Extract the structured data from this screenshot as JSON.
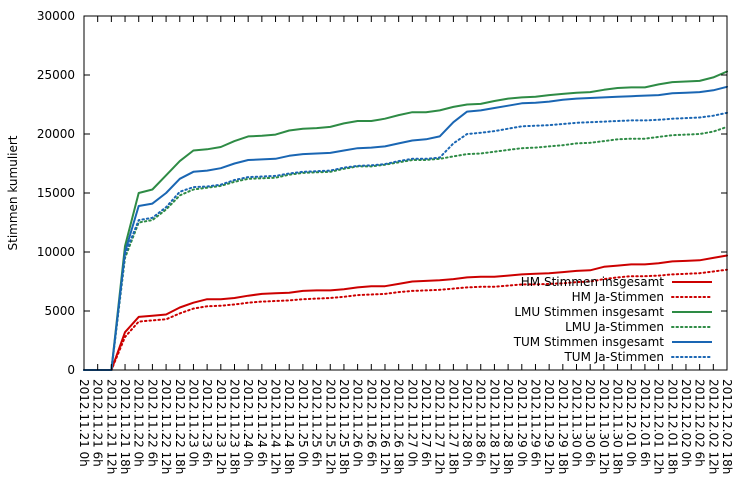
{
  "chart_data": {
    "type": "line",
    "title": "",
    "xlabel": "",
    "ylabel": "Stimmen kumuliert",
    "ylim": [
      0,
      30000
    ],
    "yticks": [
      0,
      5000,
      10000,
      15000,
      20000,
      25000,
      30000
    ],
    "grid": false,
    "legend_position": "bottom-right",
    "categories": [
      "2012.11.21 0h",
      "2012.11.21 6h",
      "2012.11.21 12h",
      "2012.11.21 18h",
      "2012.11.22 0h",
      "2012.11.22 6h",
      "2012.11.22 12h",
      "2012.11.22 18h",
      "2012.11.23 0h",
      "2012.11.23 6h",
      "2012.11.23 12h",
      "2012.11.23 18h",
      "2012.11.24 0h",
      "2012.11.24 6h",
      "2012.11.24 12h",
      "2012.11.24 18h",
      "2012.11.25 0h",
      "2012.11.25 6h",
      "2012.11.25 12h",
      "2012.11.25 18h",
      "2012.11.26 0h",
      "2012.11.26 6h",
      "2012.11.26 12h",
      "2012.11.26 18h",
      "2012.11.27 0h",
      "2012.11.27 6h",
      "2012.11.27 12h",
      "2012.11.27 18h",
      "2012.11.28 0h",
      "2012.11.28 6h",
      "2012.11.28 12h",
      "2012.11.28 18h",
      "2012.11.29 0h",
      "2012.11.29 6h",
      "2012.11.29 12h",
      "2012.11.29 18h",
      "2012.11.30 0h",
      "2012.11.30 6h",
      "2012.11.30 12h",
      "2012.11.30 18h",
      "2012.12.01 0h",
      "2012.12.01 6h",
      "2012.12.01 12h",
      "2012.12.01 18h",
      "2012.12.02 0h",
      "2012.12.02 6h",
      "2012.12.02 12h",
      "2012.12.02 18h"
    ],
    "series": [
      {
        "name": "HM Stimmen insgesamt",
        "color": "#cc0000",
        "style": "solid",
        "values": [
          0,
          0,
          0,
          3200,
          4500,
          4600,
          4700,
          5300,
          5700,
          6000,
          6000,
          6100,
          6300,
          6450,
          6500,
          6550,
          6700,
          6750,
          6750,
          6850,
          7000,
          7100,
          7100,
          7300,
          7500,
          7550,
          7600,
          7700,
          7850,
          7900,
          7900,
          8000,
          8100,
          8150,
          8200,
          8300,
          8400,
          8450,
          8750,
          8850,
          8950,
          8950,
          9050,
          9200,
          9250,
          9300,
          9500,
          9700
        ]
      },
      {
        "name": "HM Ja-Stimmen",
        "color": "#cc0000",
        "style": "dotted",
        "values": [
          0,
          0,
          0,
          2800,
          4100,
          4200,
          4300,
          4800,
          5200,
          5400,
          5450,
          5550,
          5700,
          5800,
          5850,
          5900,
          6000,
          6050,
          6100,
          6200,
          6350,
          6400,
          6450,
          6600,
          6700,
          6750,
          6800,
          6900,
          7000,
          7050,
          7050,
          7150,
          7250,
          7250,
          7300,
          7350,
          7450,
          7500,
          7700,
          7850,
          7950,
          7950,
          8000,
          8100,
          8150,
          8200,
          8350,
          8500
        ]
      },
      {
        "name": "LMU Stimmen insgesamt",
        "color": "#2e8b45",
        "style": "solid",
        "values": [
          0,
          0,
          0,
          10500,
          15000,
          15300,
          16500,
          17700,
          18600,
          18700,
          18900,
          19400,
          19800,
          19850,
          19950,
          20300,
          20450,
          20500,
          20600,
          20900,
          21100,
          21100,
          21300,
          21600,
          21850,
          21850,
          22000,
          22300,
          22500,
          22550,
          22800,
          23000,
          23100,
          23150,
          23300,
          23400,
          23500,
          23550,
          23750,
          23900,
          23950,
          23950,
          24200,
          24400,
          24450,
          24500,
          24800,
          25300
        ]
      },
      {
        "name": "LMU Ja-Stimmen",
        "color": "#2e8b45",
        "style": "dotted",
        "values": [
          0,
          0,
          0,
          9500,
          12500,
          12700,
          13600,
          14800,
          15300,
          15450,
          15600,
          15950,
          16200,
          16250,
          16300,
          16550,
          16700,
          16750,
          16800,
          17050,
          17250,
          17250,
          17400,
          17600,
          17800,
          17800,
          17900,
          18100,
          18300,
          18350,
          18500,
          18650,
          18800,
          18850,
          18950,
          19050,
          19200,
          19250,
          19400,
          19550,
          19600,
          19600,
          19750,
          19900,
          19950,
          20000,
          20200,
          20600
        ]
      },
      {
        "name": "TUM Stimmen insgesamt",
        "color": "#1a66b3",
        "style": "solid",
        "values": [
          0,
          0,
          0,
          10000,
          13900,
          14100,
          15000,
          16200,
          16800,
          16900,
          17100,
          17500,
          17800,
          17850,
          17900,
          18150,
          18300,
          18350,
          18400,
          18600,
          18800,
          18850,
          18950,
          19200,
          19450,
          19550,
          19800,
          21000,
          21900,
          22000,
          22200,
          22400,
          22600,
          22650,
          22750,
          22900,
          23000,
          23050,
          23100,
          23150,
          23200,
          23250,
          23300,
          23450,
          23500,
          23550,
          23700,
          24000
        ]
      },
      {
        "name": "TUM Ja-Stimmen",
        "color": "#1a66b3",
        "style": "dotted",
        "values": [
          0,
          0,
          0,
          9800,
          12700,
          12900,
          13800,
          15100,
          15500,
          15550,
          15700,
          16100,
          16350,
          16400,
          16450,
          16650,
          16800,
          16850,
          16900,
          17150,
          17300,
          17350,
          17450,
          17700,
          17900,
          17900,
          18000,
          19200,
          20000,
          20100,
          20250,
          20450,
          20650,
          20700,
          20750,
          20850,
          20950,
          21000,
          21050,
          21100,
          21150,
          21150,
          21200,
          21300,
          21350,
          21400,
          21550,
          21800
        ]
      }
    ]
  }
}
